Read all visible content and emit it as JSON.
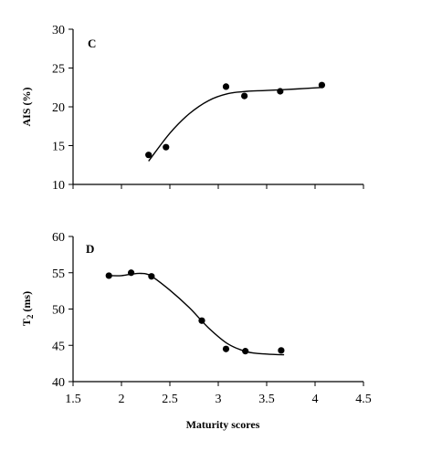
{
  "chart_data": [
    {
      "type": "scatter",
      "panel_label": "C",
      "title": "",
      "xlabel": "",
      "ylabel": "AIS (%)",
      "xlim": [
        1.5,
        4.5
      ],
      "ylim": [
        10,
        30
      ],
      "x_ticks": [
        1.5,
        2,
        2.5,
        3,
        3.5,
        4,
        4.5
      ],
      "x_tick_labels": [
        "",
        "",
        "",
        "",
        "",
        "",
        ""
      ],
      "y_ticks": [
        10,
        15,
        20,
        25,
        30
      ],
      "y_tick_labels": [
        "10",
        "15",
        "20",
        "25",
        "30"
      ],
      "grid": false,
      "series": [
        {
          "kind": "points",
          "x": [
            2.28,
            2.46,
            3.08,
            3.27,
            3.64,
            4.07
          ],
          "y": [
            13.8,
            14.8,
            22.6,
            21.4,
            22.0,
            22.8
          ]
        },
        {
          "kind": "fit-line",
          "x": [
            2.28,
            2.5,
            2.7,
            2.9,
            3.1,
            3.3,
            3.5,
            3.8,
            4.07
          ],
          "y": [
            13.0,
            16.6,
            19.1,
            20.8,
            21.7,
            22.0,
            22.1,
            22.3,
            22.5
          ]
        }
      ]
    },
    {
      "type": "scatter",
      "panel_label": "D",
      "title": "",
      "xlabel": "Maturity scores",
      "ylabel": "T2 (ms)",
      "xlim": [
        1.5,
        4.5
      ],
      "ylim": [
        40,
        60
      ],
      "x_ticks": [
        1.5,
        2,
        2.5,
        3,
        3.5,
        4,
        4.5
      ],
      "x_tick_labels": [
        "1.5",
        "2",
        "2.5",
        "3",
        "3.5",
        "4",
        "4.5"
      ],
      "y_ticks": [
        40,
        45,
        50,
        55,
        60
      ],
      "y_tick_labels": [
        "40",
        "45",
        "50",
        "55",
        "60"
      ],
      "grid": false,
      "series": [
        {
          "kind": "points",
          "x": [
            1.87,
            2.1,
            2.31,
            2.83,
            3.08,
            3.28,
            3.65
          ],
          "y": [
            54.6,
            55.0,
            54.5,
            48.4,
            44.5,
            44.2,
            44.3
          ]
        },
        {
          "kind": "fit-line",
          "x": [
            1.87,
            2.0,
            2.1,
            2.2,
            2.3,
            2.5,
            2.7,
            2.9,
            3.1,
            3.3,
            3.5,
            3.68
          ],
          "y": [
            54.6,
            54.6,
            54.8,
            54.9,
            54.6,
            52.6,
            50.2,
            47.4,
            45.2,
            44.1,
            43.8,
            43.7
          ]
        }
      ]
    }
  ]
}
